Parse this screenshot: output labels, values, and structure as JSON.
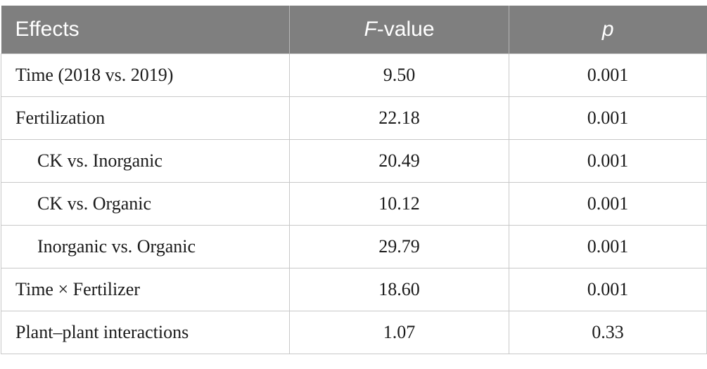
{
  "table": {
    "headers": {
      "effects": "Effects",
      "f_italic": "F",
      "f_rest": "-value",
      "p": "p"
    },
    "rows": [
      {
        "effect": "Time (2018 vs. 2019)",
        "f": "9.50",
        "p": "0.001",
        "indent": false
      },
      {
        "effect": "Fertilization",
        "f": "22.18",
        "p": "0.001",
        "indent": false
      },
      {
        "effect": "CK vs. Inorganic",
        "f": "20.49",
        "p": "0.001",
        "indent": true
      },
      {
        "effect": "CK vs. Organic",
        "f": "10.12",
        "p": "0.001",
        "indent": true
      },
      {
        "effect": "Inorganic vs. Organic",
        "f": "29.79",
        "p": "0.001",
        "indent": true
      },
      {
        "effect": "Time × Fertilizer",
        "f": "18.60",
        "p": "0.001",
        "indent": false
      },
      {
        "effect": "Plant–plant interactions",
        "f": "1.07",
        "p": "0.33",
        "indent": false
      }
    ]
  }
}
